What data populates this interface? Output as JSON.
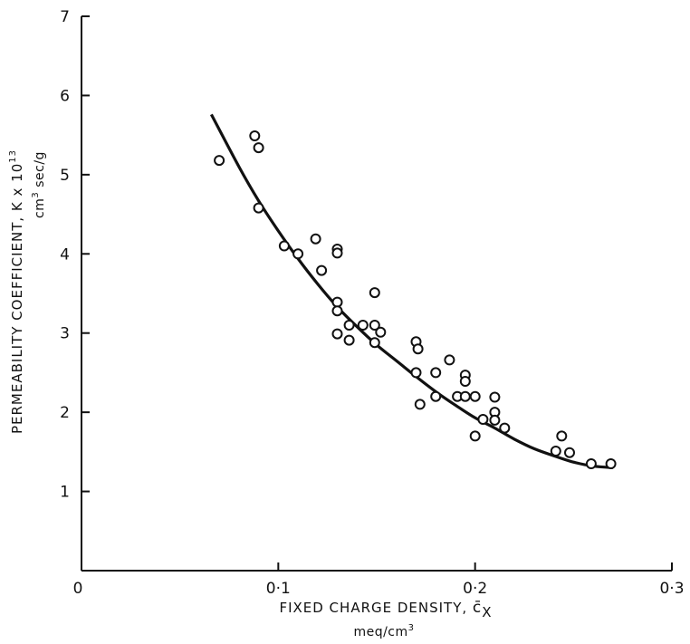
{
  "chart_data": {
    "type": "scatter",
    "xlabel": "FIXED CHARGE DENSITY, c̄X",
    "xlabel_parts": {
      "main": "FIXED CHARGE DENSITY, ",
      "symbol": "c̄",
      "subscript": "X"
    },
    "xunit": "meq/cm3",
    "xunit_parts": {
      "main": "meq/cm",
      "sup": "3"
    },
    "ylabel": "PERMEABILITY COEFFICIENT, K x 10^13",
    "ylabel_parts": {
      "main": "PERMEABILITY COEFFICIENT, K x 10",
      "sup": "13"
    },
    "yunit": "cm3 sec/g",
    "yunit_parts": {
      "a": "cm",
      "sup": "3",
      "b": " sec/g"
    },
    "xlim": [
      0,
      0.3
    ],
    "ylim": [
      0,
      7
    ],
    "xticks": [
      {
        "value": 0,
        "label": "0"
      },
      {
        "value": 0.1,
        "label": "0·1"
      },
      {
        "value": 0.2,
        "label": "0·2"
      },
      {
        "value": 0.3,
        "label": "0·3"
      }
    ],
    "yticks": [
      {
        "value": 1,
        "label": "1"
      },
      {
        "value": 2,
        "label": "2"
      },
      {
        "value": 3,
        "label": "3"
      },
      {
        "value": 4,
        "label": "4"
      },
      {
        "value": 5,
        "label": "5"
      },
      {
        "value": 6,
        "label": "6"
      },
      {
        "value": 7,
        "label": "7"
      }
    ],
    "grid": false,
    "legend": false,
    "series": [
      {
        "kind": "scatter",
        "marker": "open-circle",
        "points": [
          [
            0.07,
            5.18
          ],
          [
            0.088,
            5.49
          ],
          [
            0.09,
            5.34
          ],
          [
            0.09,
            4.58
          ],
          [
            0.103,
            4.1
          ],
          [
            0.11,
            4.0
          ],
          [
            0.119,
            4.19
          ],
          [
            0.122,
            3.79
          ],
          [
            0.13,
            4.06
          ],
          [
            0.13,
            4.01
          ],
          [
            0.13,
            3.39
          ],
          [
            0.13,
            3.28
          ],
          [
            0.13,
            2.99
          ],
          [
            0.136,
            3.1
          ],
          [
            0.136,
            2.91
          ],
          [
            0.143,
            3.1
          ],
          [
            0.149,
            3.51
          ],
          [
            0.149,
            3.1
          ],
          [
            0.149,
            2.88
          ],
          [
            0.152,
            3.01
          ],
          [
            0.17,
            2.89
          ],
          [
            0.171,
            2.8
          ],
          [
            0.17,
            2.5
          ],
          [
            0.172,
            2.1
          ],
          [
            0.18,
            2.5
          ],
          [
            0.18,
            2.2
          ],
          [
            0.187,
            2.66
          ],
          [
            0.191,
            2.2
          ],
          [
            0.195,
            2.47
          ],
          [
            0.195,
            2.39
          ],
          [
            0.195,
            2.2
          ],
          [
            0.2,
            2.2
          ],
          [
            0.2,
            1.7
          ],
          [
            0.204,
            1.91
          ],
          [
            0.21,
            2.19
          ],
          [
            0.21,
            2.0
          ],
          [
            0.21,
            1.9
          ],
          [
            0.215,
            1.8
          ],
          [
            0.241,
            1.51
          ],
          [
            0.244,
            1.7
          ],
          [
            0.248,
            1.49
          ],
          [
            0.259,
            1.35
          ],
          [
            0.269,
            1.35
          ]
        ]
      },
      {
        "kind": "fit-curve",
        "points": [
          [
            0.066,
            5.76
          ],
          [
            0.08,
            5.1
          ],
          [
            0.09,
            4.67
          ],
          [
            0.1,
            4.29
          ],
          [
            0.11,
            3.94
          ],
          [
            0.12,
            3.62
          ],
          [
            0.13,
            3.33
          ],
          [
            0.14,
            3.08
          ],
          [
            0.15,
            2.85
          ],
          [
            0.16,
            2.65
          ],
          [
            0.17,
            2.45
          ],
          [
            0.18,
            2.26
          ],
          [
            0.19,
            2.09
          ],
          [
            0.2,
            1.93
          ],
          [
            0.21,
            1.8
          ],
          [
            0.22,
            1.66
          ],
          [
            0.23,
            1.54
          ],
          [
            0.24,
            1.45
          ],
          [
            0.25,
            1.37
          ],
          [
            0.26,
            1.32
          ],
          [
            0.27,
            1.3
          ]
        ]
      }
    ]
  }
}
